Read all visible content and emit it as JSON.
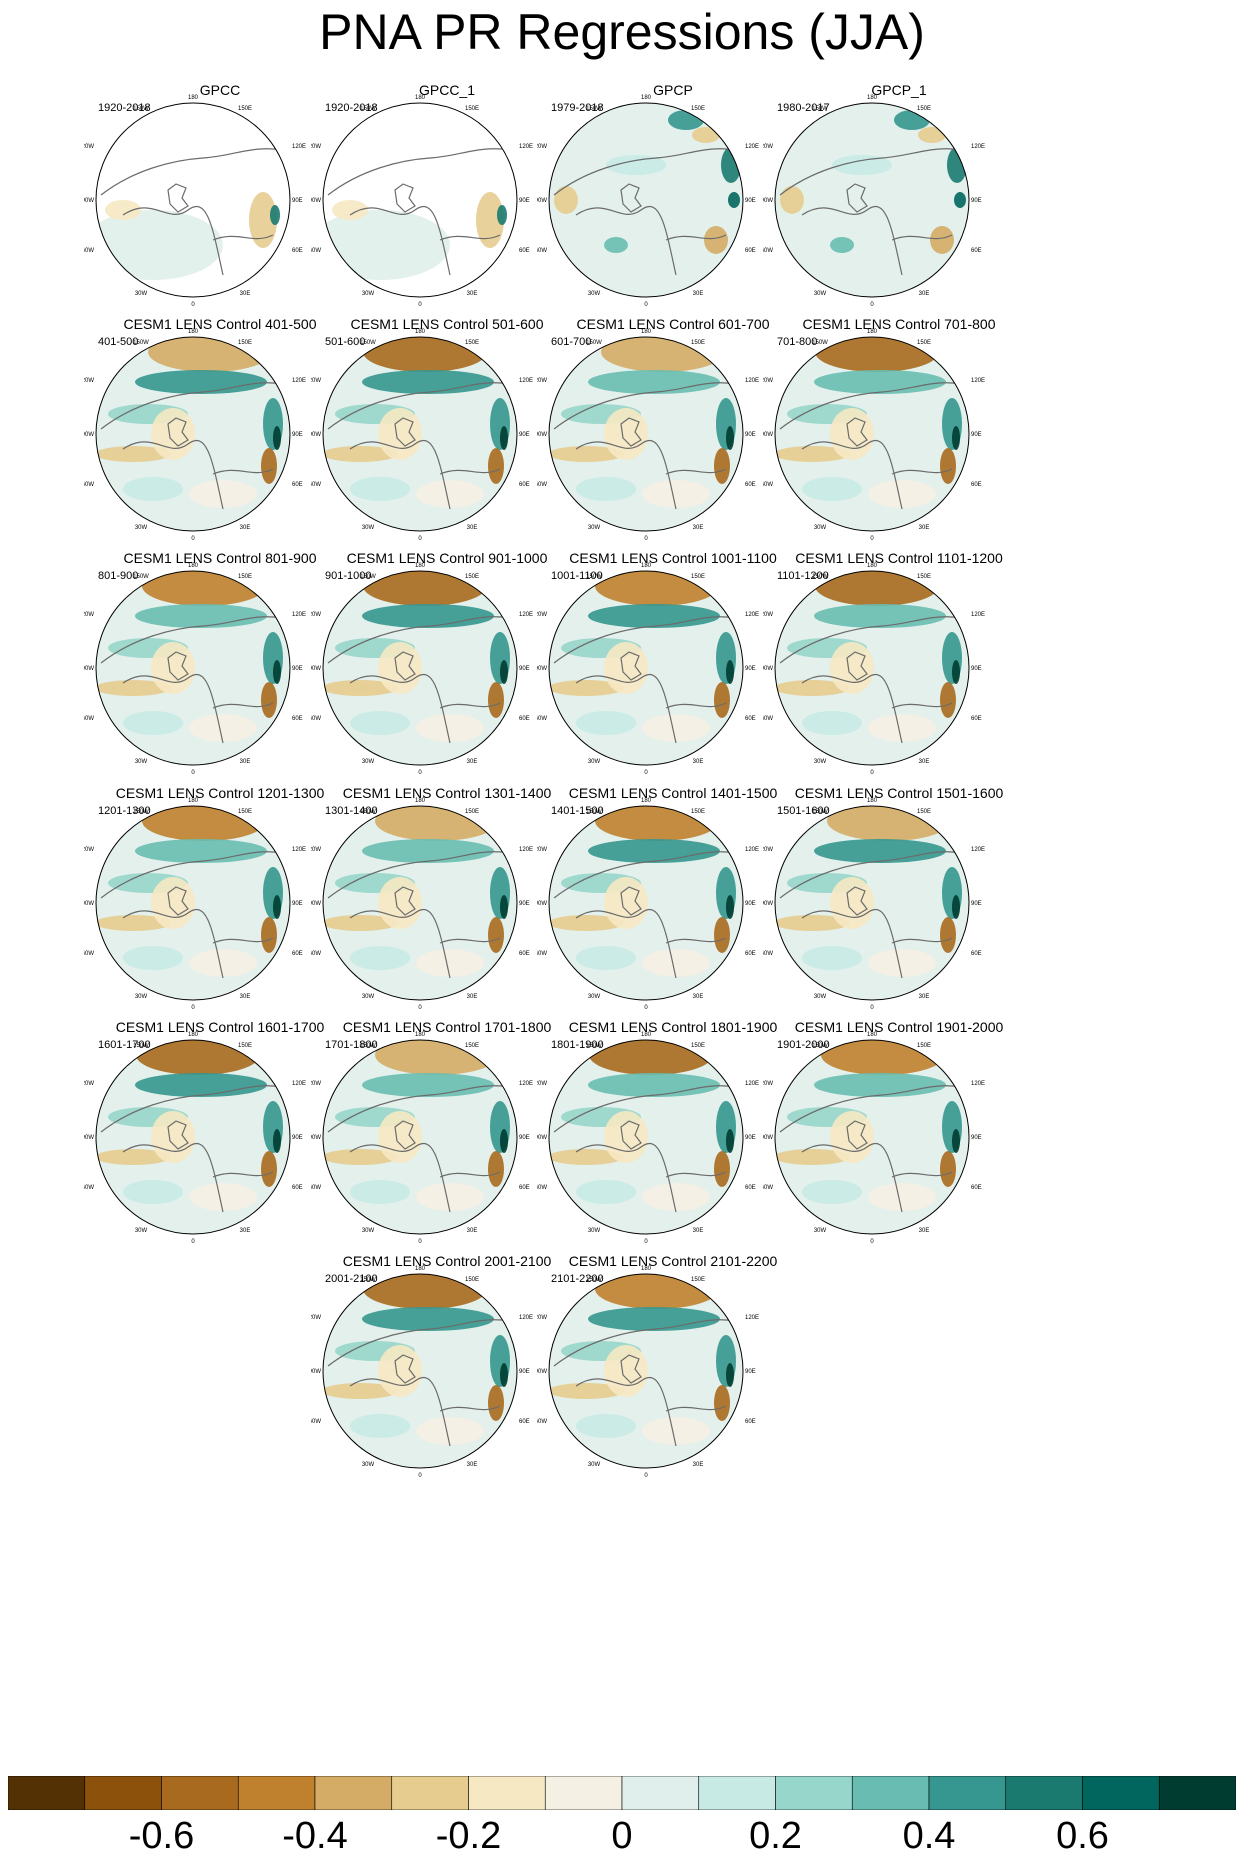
{
  "title": "PNA PR Regressions (JJA)",
  "lon_labels": {
    "top": "180",
    "bottom": "0",
    "150w": "150W",
    "150e": "150E",
    "120w": "120W",
    "120e": "120E",
    "90w": "90W",
    "90e": "90E",
    "60w": "60W",
    "60e": "60E",
    "30w": "30W",
    "30e": "30E"
  },
  "panels": [
    {
      "title": "GPCC",
      "period": "1920-2018"
    },
    {
      "title": "GPCC_1",
      "period": "1920-2018"
    },
    {
      "title": "GPCP",
      "period": "1979-2018"
    },
    {
      "title": "GPCP_1",
      "period": "1980-2017"
    },
    {
      "title": "CESM1 LENS Control 401-500",
      "period": "401-500"
    },
    {
      "title": "CESM1 LENS Control 501-600",
      "period": "501-600"
    },
    {
      "title": "CESM1 LENS Control 601-700",
      "period": "601-700"
    },
    {
      "title": "CESM1 LENS Control 701-800",
      "period": "701-800"
    },
    {
      "title": "CESM1 LENS Control 801-900",
      "period": "801-900"
    },
    {
      "title": "CESM1 LENS Control 901-1000",
      "period": "901-1000"
    },
    {
      "title": "CESM1 LENS Control 1001-1100",
      "period": "1001-1100"
    },
    {
      "title": "CESM1 LENS Control 1101-1200",
      "period": "1101-1200"
    },
    {
      "title": "CESM1 LENS Control 1201-1300",
      "period": "1201-1300"
    },
    {
      "title": "CESM1 LENS Control 1301-1400",
      "period": "1301-1400"
    },
    {
      "title": "CESM1 LENS Control 1401-1500",
      "period": "1401-1500"
    },
    {
      "title": "CESM1 LENS Control 1501-1600",
      "period": "1501-1600"
    },
    {
      "title": "CESM1 LENS Control 1601-1700",
      "period": "1601-1700"
    },
    {
      "title": "CESM1 LENS Control 1701-1800",
      "period": "1701-1800"
    },
    {
      "title": "CESM1 LENS Control 1801-1900",
      "period": "1801-1900"
    },
    {
      "title": "CESM1 LENS Control 1901-2000",
      "period": "1901-2000"
    },
    {
      "title": "CESM1 LENS Control 2001-2100",
      "period": "2001-2100"
    },
    {
      "title": "CESM1 LENS Control 2101-2200",
      "period": "2101-2200"
    }
  ],
  "colorbar": {
    "colors": [
      "#543005",
      "#8c510a",
      "#a86a1e",
      "#bf812d",
      "#d4ac65",
      "#e6cc8f",
      "#f6e8c3",
      "#f5f0e4",
      "#e0efeb",
      "#c7eae5",
      "#97d6cb",
      "#68bcb1",
      "#35978f",
      "#1a7a70",
      "#01665e",
      "#003c30"
    ],
    "labels": [
      "-0.6",
      "-0.4",
      "-0.2",
      "0",
      "0.2",
      "0.4",
      "0.6"
    ],
    "label_values": [
      -0.6,
      -0.4,
      -0.2,
      0,
      0.2,
      0.4,
      0.6
    ],
    "min": -0.8,
    "max": 0.8
  }
}
